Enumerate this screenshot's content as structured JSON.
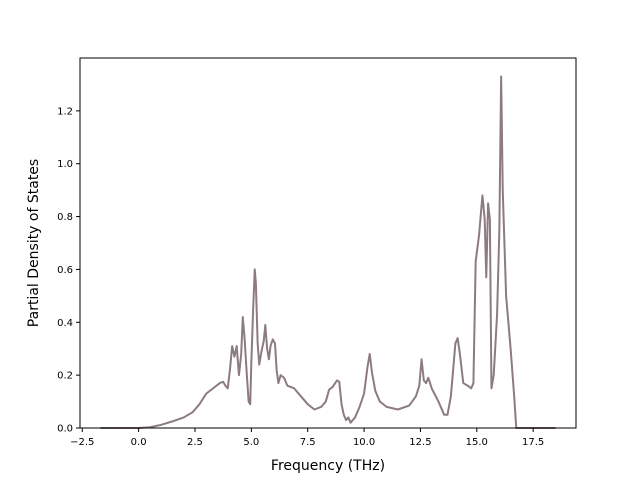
{
  "chart_data": {
    "type": "line",
    "title": "",
    "xlabel": "Frequency (THz)",
    "ylabel": "Partial Density of States",
    "xlim": [
      -2.6,
      19.4
    ],
    "ylim": [
      0.0,
      1.4
    ],
    "xticks": [
      -2.5,
      0.0,
      2.5,
      5.0,
      7.5,
      10.0,
      12.5,
      15.0,
      17.5
    ],
    "xtick_labels": [
      "−2.5",
      "0.0",
      "2.5",
      "5.0",
      "7.5",
      "10.0",
      "12.5",
      "15.0",
      "17.5"
    ],
    "yticks": [
      0.0,
      0.2,
      0.4,
      0.6,
      0.8,
      1.0,
      1.2
    ],
    "ytick_labels": [
      "0.0",
      "0.2",
      "0.4",
      "0.6",
      "0.8",
      "1.0",
      "1.2"
    ],
    "grid": false,
    "legend": "none",
    "series": [
      {
        "color": "#8c7b80",
        "points": [
          [
            -1.7,
            0.0
          ],
          [
            0.0,
            0.0
          ],
          [
            0.5,
            0.003
          ],
          [
            1.0,
            0.012
          ],
          [
            1.5,
            0.025
          ],
          [
            2.0,
            0.04
          ],
          [
            2.4,
            0.06
          ],
          [
            2.7,
            0.09
          ],
          [
            3.0,
            0.13
          ],
          [
            3.3,
            0.15
          ],
          [
            3.6,
            0.17
          ],
          [
            3.75,
            0.175
          ],
          [
            3.85,
            0.16
          ],
          [
            3.95,
            0.15
          ],
          [
            4.05,
            0.22
          ],
          [
            4.15,
            0.31
          ],
          [
            4.25,
            0.27
          ],
          [
            4.35,
            0.31
          ],
          [
            4.45,
            0.2
          ],
          [
            4.55,
            0.28
          ],
          [
            4.62,
            0.42
          ],
          [
            4.7,
            0.34
          ],
          [
            4.8,
            0.2
          ],
          [
            4.88,
            0.1
          ],
          [
            4.95,
            0.09
          ],
          [
            5.0,
            0.25
          ],
          [
            5.08,
            0.45
          ],
          [
            5.15,
            0.6
          ],
          [
            5.2,
            0.55
          ],
          [
            5.28,
            0.32
          ],
          [
            5.35,
            0.24
          ],
          [
            5.45,
            0.29
          ],
          [
            5.55,
            0.33
          ],
          [
            5.62,
            0.39
          ],
          [
            5.7,
            0.3
          ],
          [
            5.78,
            0.26
          ],
          [
            5.85,
            0.31
          ],
          [
            5.95,
            0.335
          ],
          [
            6.05,
            0.32
          ],
          [
            6.12,
            0.22
          ],
          [
            6.2,
            0.17
          ],
          [
            6.3,
            0.2
          ],
          [
            6.45,
            0.19
          ],
          [
            6.6,
            0.16
          ],
          [
            6.9,
            0.15
          ],
          [
            7.2,
            0.12
          ],
          [
            7.5,
            0.09
          ],
          [
            7.8,
            0.07
          ],
          [
            8.1,
            0.08
          ],
          [
            8.3,
            0.1
          ],
          [
            8.45,
            0.145
          ],
          [
            8.6,
            0.155
          ],
          [
            8.8,
            0.18
          ],
          [
            8.9,
            0.175
          ],
          [
            9.0,
            0.09
          ],
          [
            9.1,
            0.05
          ],
          [
            9.2,
            0.03
          ],
          [
            9.3,
            0.04
          ],
          [
            9.4,
            0.02
          ],
          [
            9.6,
            0.04
          ],
          [
            9.8,
            0.08
          ],
          [
            10.0,
            0.13
          ],
          [
            10.15,
            0.23
          ],
          [
            10.25,
            0.28
          ],
          [
            10.35,
            0.21
          ],
          [
            10.5,
            0.14
          ],
          [
            10.7,
            0.1
          ],
          [
            11.0,
            0.08
          ],
          [
            11.5,
            0.07
          ],
          [
            12.0,
            0.085
          ],
          [
            12.3,
            0.12
          ],
          [
            12.45,
            0.16
          ],
          [
            12.55,
            0.26
          ],
          [
            12.65,
            0.18
          ],
          [
            12.75,
            0.17
          ],
          [
            12.85,
            0.19
          ],
          [
            13.0,
            0.15
          ],
          [
            13.3,
            0.1
          ],
          [
            13.55,
            0.05
          ],
          [
            13.7,
            0.05
          ],
          [
            13.85,
            0.12
          ],
          [
            13.95,
            0.22
          ],
          [
            14.05,
            0.32
          ],
          [
            14.15,
            0.34
          ],
          [
            14.25,
            0.28
          ],
          [
            14.4,
            0.17
          ],
          [
            14.6,
            0.16
          ],
          [
            14.75,
            0.15
          ],
          [
            14.85,
            0.17
          ],
          [
            14.95,
            0.63
          ],
          [
            15.1,
            0.73
          ],
          [
            15.25,
            0.88
          ],
          [
            15.35,
            0.79
          ],
          [
            15.42,
            0.57
          ],
          [
            15.5,
            0.85
          ],
          [
            15.58,
            0.79
          ],
          [
            15.65,
            0.15
          ],
          [
            15.75,
            0.2
          ],
          [
            15.9,
            0.43
          ],
          [
            16.0,
            0.75
          ],
          [
            16.08,
            1.33
          ],
          [
            16.15,
            0.9
          ],
          [
            16.3,
            0.5
          ],
          [
            16.5,
            0.3
          ],
          [
            16.65,
            0.13
          ],
          [
            16.75,
            0.0
          ],
          [
            17.0,
            0.0
          ],
          [
            18.5,
            0.0
          ]
        ]
      }
    ]
  }
}
